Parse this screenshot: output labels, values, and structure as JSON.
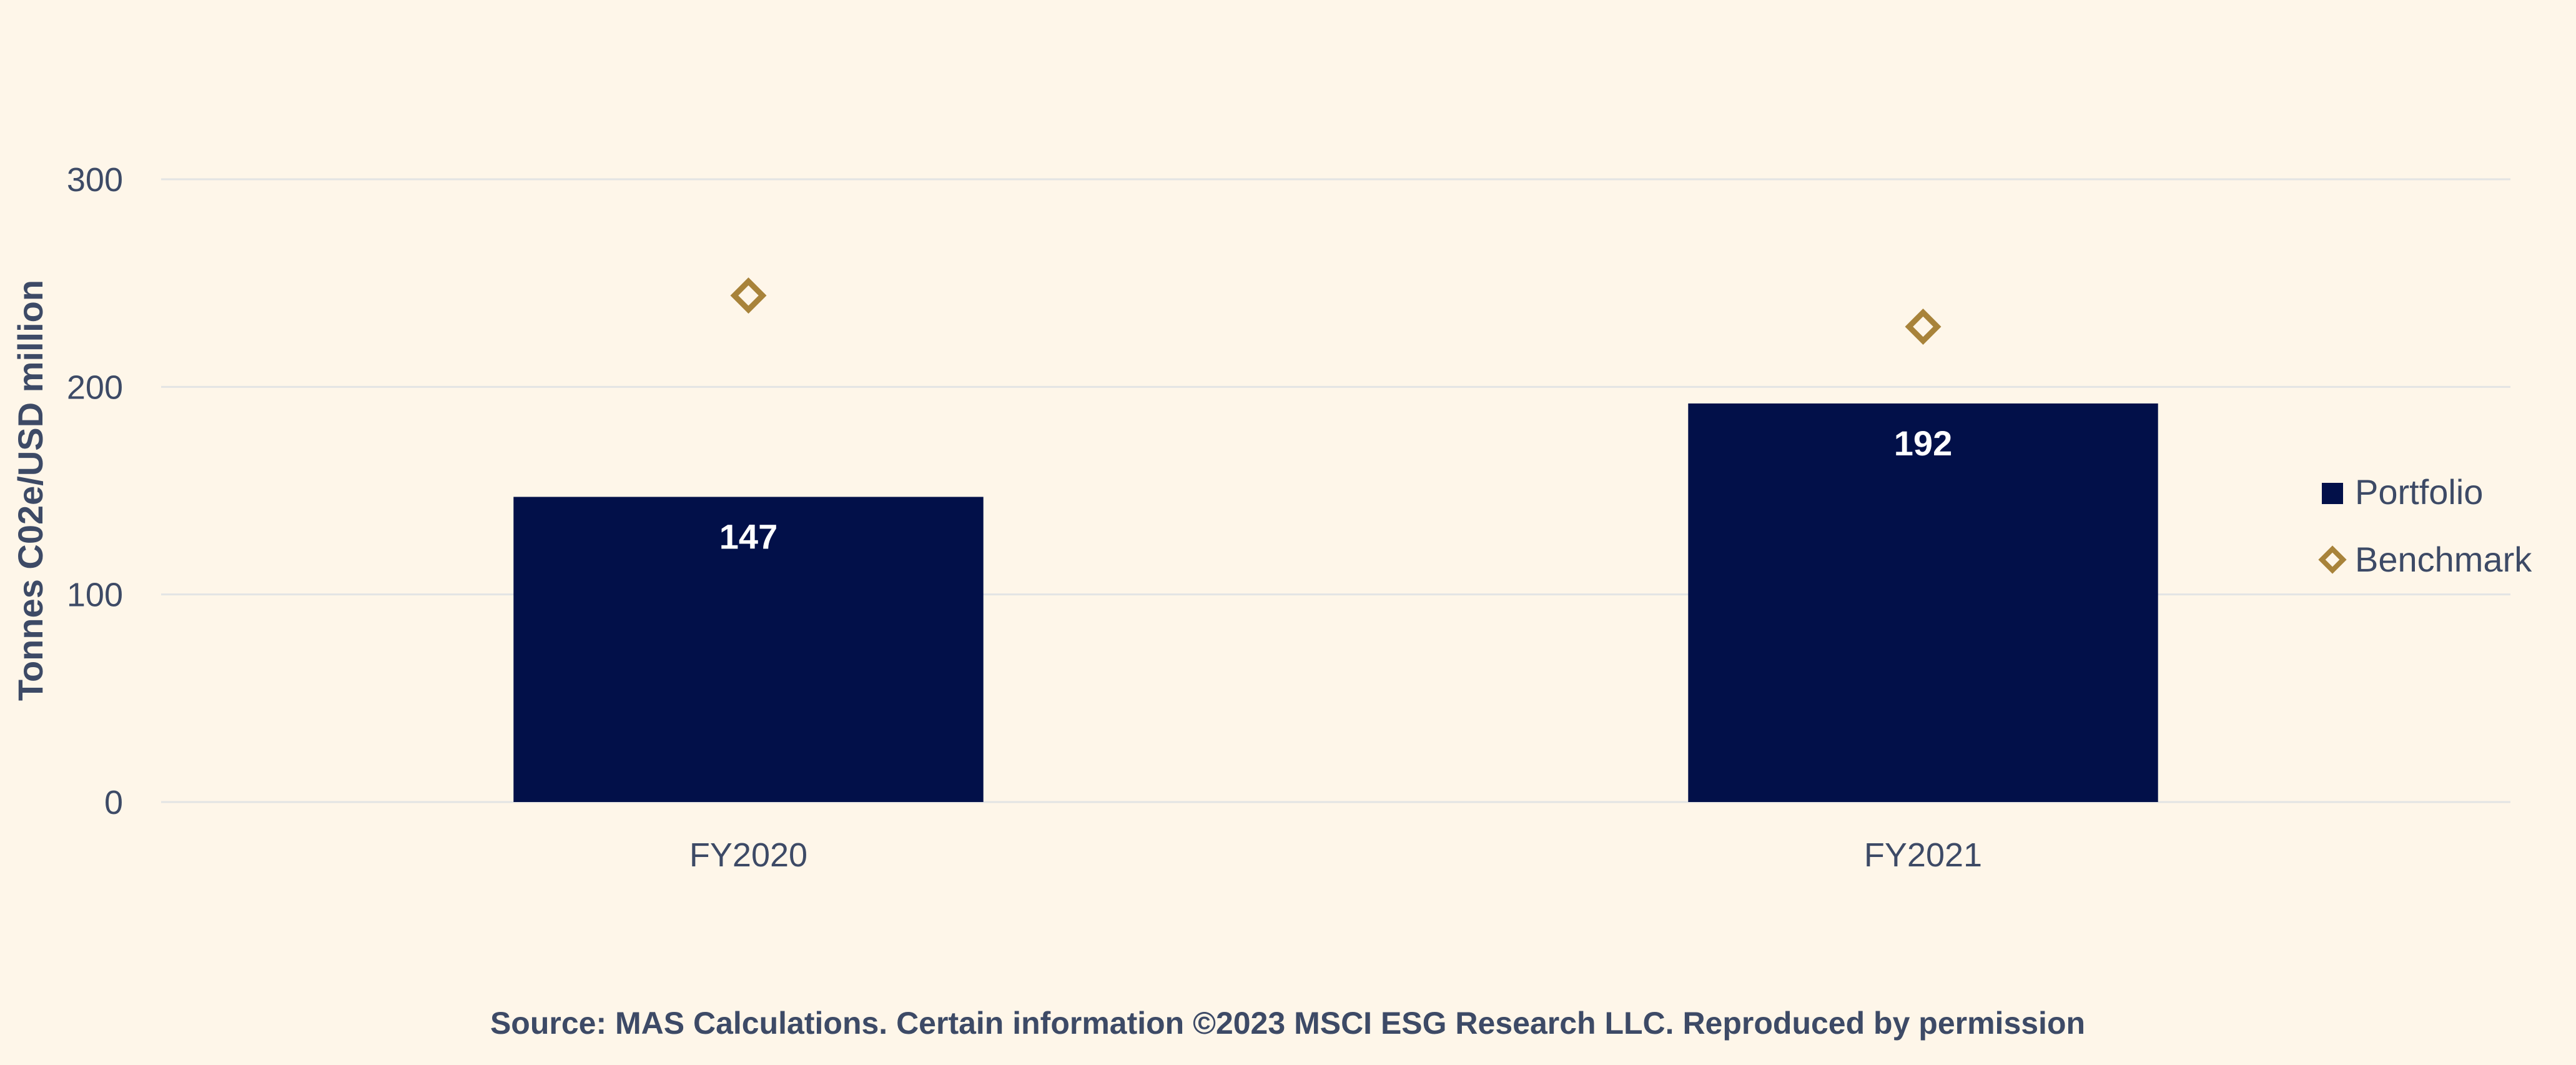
{
  "chart_data": {
    "type": "bar",
    "categories": [
      "FY2020",
      "FY2021"
    ],
    "series": [
      {
        "name": "Portfolio",
        "kind": "bar",
        "values": [
          147,
          192
        ],
        "color": "#021049"
      },
      {
        "name": "Benchmark",
        "kind": "marker",
        "marker": "diamond-outline",
        "values": [
          244,
          229
        ],
        "color": "#a8833a"
      }
    ],
    "ylabel": "Tonnes C02e/USD million",
    "xlabel": "",
    "ylim": [
      0,
      300
    ],
    "yticks": [
      0,
      100,
      200,
      300
    ],
    "grid": true,
    "legend_position": "right",
    "data_labels": [
      "147",
      "192"
    ]
  },
  "source": "Source: MAS Calculations. Certain information ©2023 MSCI ESG Research LLC. Reproduced by permission",
  "colors": {
    "background": "#fef6e9",
    "grid": "#e3e4e4",
    "text": "#3d4a66"
  }
}
